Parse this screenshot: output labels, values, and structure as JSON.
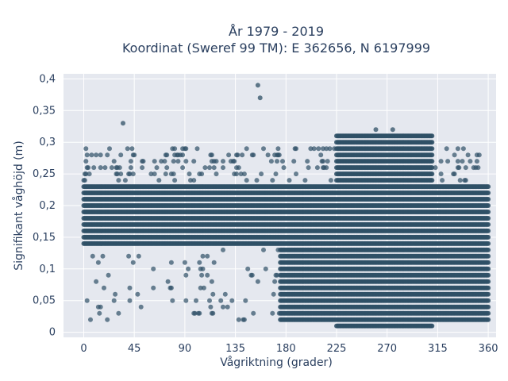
{
  "chart_data": {
    "type": "scatter",
    "title_line1": "År 1979 - 2019",
    "title_line2": "Koordinat (Sweref 99 TM): E 362656, N 6197999",
    "xlabel": "Vågriktning (grader)",
    "ylabel": "Signifikant våghöjd (m)",
    "xlim": [
      -18,
      367
    ],
    "ylim": [
      -0.008,
      0.408
    ],
    "x_ticks": [
      0,
      45,
      90,
      135,
      180,
      225,
      270,
      315,
      360
    ],
    "x_tick_labels": [
      "0",
      "45",
      "90",
      "135",
      "180",
      "225",
      "270",
      "315",
      "360"
    ],
    "y_ticks": [
      0,
      0.05,
      0.1,
      0.15,
      0.2,
      0.25,
      0.3,
      0.35,
      0.4
    ],
    "y_tick_labels": [
      "0",
      "0,05",
      "0,1",
      "0,15",
      "0,2",
      "0,25",
      "0,3",
      "0,35",
      "0,4"
    ],
    "grid": true,
    "marker_color": "#2f5066",
    "plot_background": "#e5e8ef",
    "x_step_deg": 1,
    "y_step_m": 0.01,
    "density_bands": [
      {
        "x": [
          0,
          360
        ],
        "y": [
          0.14,
          0.23
        ]
      },
      {
        "x": [
          225,
          310
        ],
        "y": [
          0.01,
          0.31
        ]
      },
      {
        "x": [
          175,
          240
        ],
        "y": [
          0.02,
          0.14
        ]
      },
      {
        "x": [
          300,
          360
        ],
        "y": [
          0.02,
          0.14
        ]
      }
    ],
    "peaks": [
      {
        "x": 155,
        "y": 0.39
      },
      {
        "x": 157,
        "y": 0.37
      },
      {
        "x": 35,
        "y": 0.33
      },
      {
        "x": 260,
        "y": 0.32
      },
      {
        "x": 275,
        "y": 0.32
      }
    ]
  }
}
